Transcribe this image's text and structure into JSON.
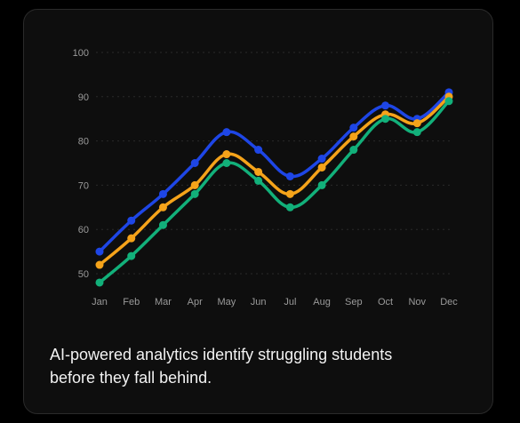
{
  "caption": {
    "line1": "AI-powered analytics identify struggling students",
    "line2": "before they fall behind."
  },
  "chart_data": {
    "type": "line",
    "categories": [
      "Jan",
      "Feb",
      "Mar",
      "Apr",
      "May",
      "Jun",
      "Jul",
      "Aug",
      "Sep",
      "Oct",
      "Nov",
      "Dec"
    ],
    "ylim": [
      47,
      100
    ],
    "yticks": [
      50,
      60,
      70,
      80,
      90,
      100
    ],
    "grid": true,
    "legend": "none",
    "series": [
      {
        "color": "#1e46e6",
        "values": [
          55,
          62,
          68,
          75,
          82,
          78,
          72,
          76,
          83,
          88,
          85,
          91
        ]
      },
      {
        "color": "#f5a31a",
        "values": [
          52,
          58,
          65,
          70,
          77,
          73,
          68,
          74,
          81,
          86,
          84,
          90
        ]
      },
      {
        "color": "#12b07a",
        "values": [
          48,
          54,
          61,
          68,
          75,
          71,
          65,
          70,
          78,
          85,
          82,
          89
        ]
      }
    ]
  }
}
